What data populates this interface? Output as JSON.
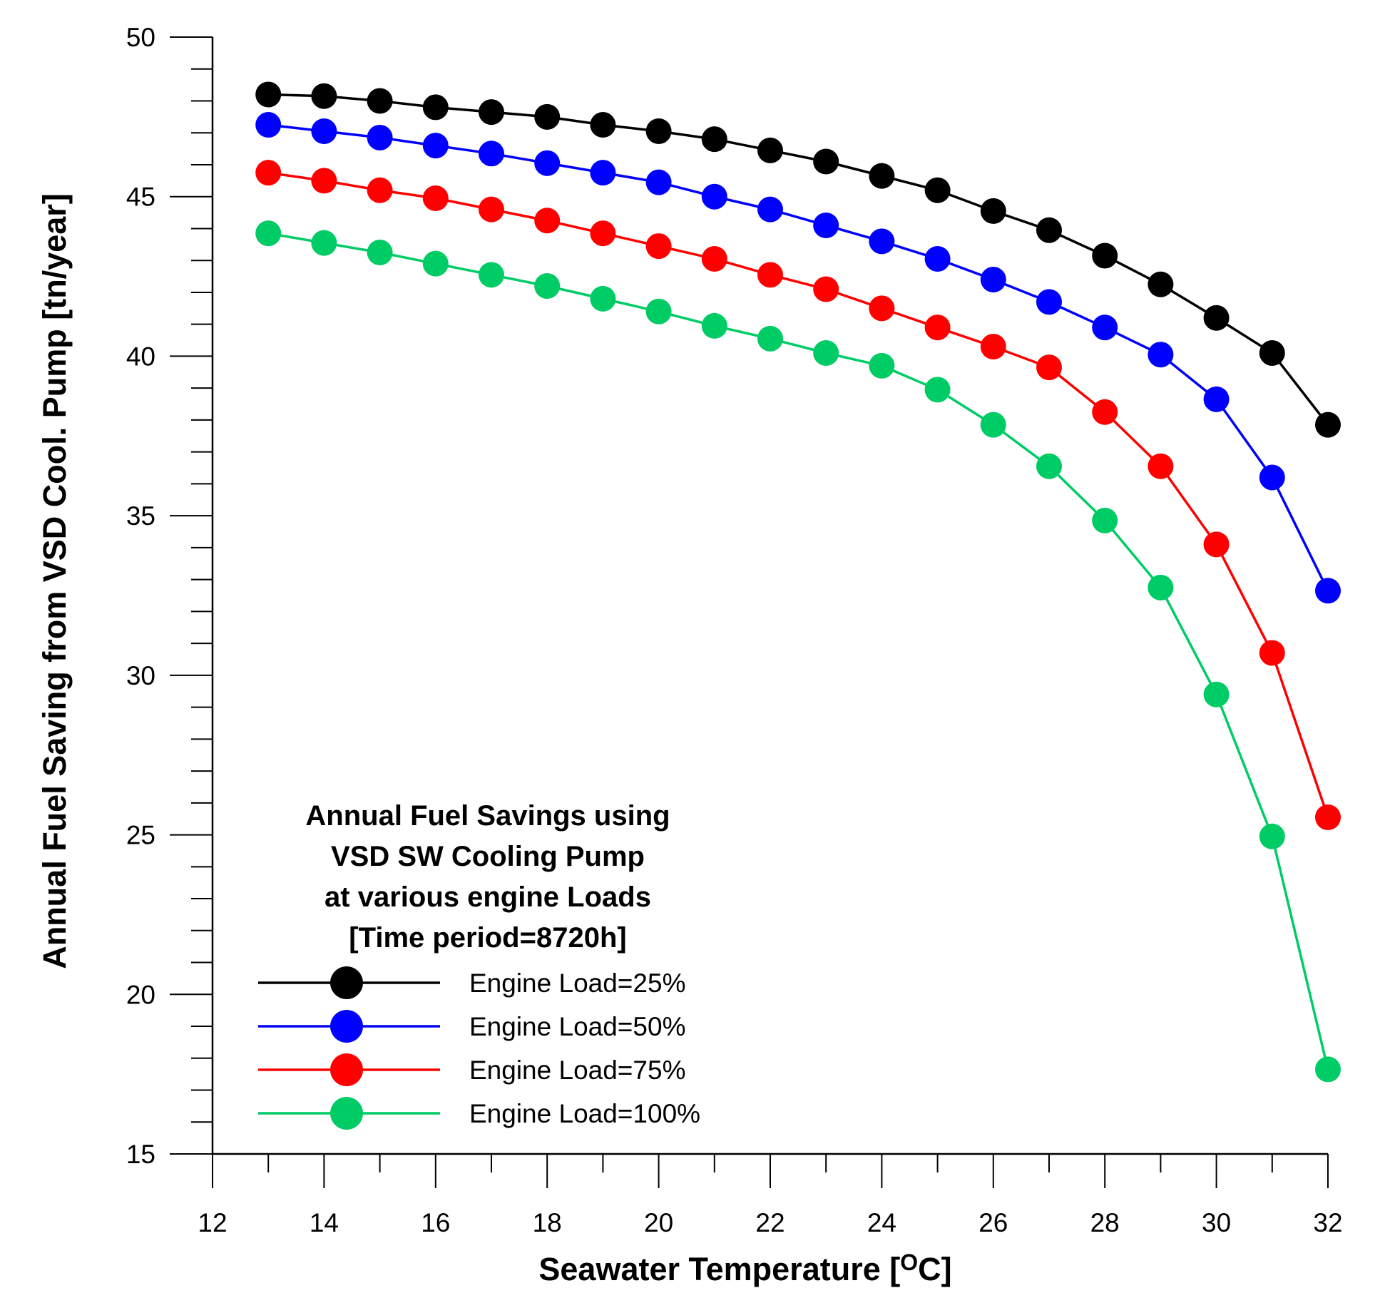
{
  "chart_data": {
    "type": "line",
    "title": "",
    "xlabel": {
      "main": "Seawater Temperature [",
      "sup": "O",
      "tail": "C]"
    },
    "ylabel": "Annual Fuel Saving from VSD Cool. Pump [tn/year]",
    "xlim": [
      12,
      32
    ],
    "ylim": [
      15,
      50
    ],
    "xticks": [
      12,
      14,
      16,
      18,
      20,
      22,
      24,
      26,
      28,
      30,
      32
    ],
    "yticks": [
      15,
      20,
      25,
      30,
      35,
      40,
      45,
      50
    ],
    "x_minor_step": 1,
    "y_minor_step": 1,
    "grid": false,
    "legend": {
      "placement": "bottom-left",
      "title_lines": [
        "Annual Fuel Savings using",
        "VSD SW Cooling Pump",
        "at various engine Loads",
        "[Time period=8720h]"
      ]
    },
    "x": [
      13,
      14,
      15,
      16,
      17,
      18,
      19,
      20,
      21,
      22,
      23,
      24,
      25,
      26,
      27,
      28,
      29,
      30,
      31,
      32
    ],
    "series": [
      {
        "name": "Engine Load=25%",
        "color": "#000000",
        "values": [
          48.2,
          48.15,
          48.0,
          47.8,
          47.65,
          47.5,
          47.25,
          47.05,
          46.8,
          46.45,
          46.1,
          45.65,
          45.2,
          44.55,
          43.95,
          43.15,
          42.25,
          41.2,
          40.1,
          37.85
        ]
      },
      {
        "name": "Engine Load=50%",
        "color": "#0000ff",
        "values": [
          47.25,
          47.05,
          46.85,
          46.6,
          46.35,
          46.05,
          45.75,
          45.45,
          45.0,
          44.6,
          44.1,
          43.6,
          43.05,
          42.4,
          41.7,
          40.9,
          40.05,
          38.65,
          36.2,
          32.65
        ]
      },
      {
        "name": "Engine Load=75%",
        "color": "#ff0000",
        "values": [
          45.75,
          45.5,
          45.2,
          44.95,
          44.6,
          44.25,
          43.85,
          43.45,
          43.05,
          42.55,
          42.1,
          41.5,
          40.9,
          40.3,
          39.65,
          38.25,
          36.55,
          34.1,
          30.7,
          25.55
        ]
      },
      {
        "name": "Engine Load=100%",
        "color": "#00cc66",
        "values": [
          43.85,
          43.55,
          43.25,
          42.9,
          42.55,
          42.2,
          41.8,
          41.4,
          40.95,
          40.55,
          40.1,
          39.7,
          38.95,
          37.85,
          36.55,
          34.85,
          32.75,
          29.4,
          24.95,
          17.65
        ]
      }
    ]
  }
}
